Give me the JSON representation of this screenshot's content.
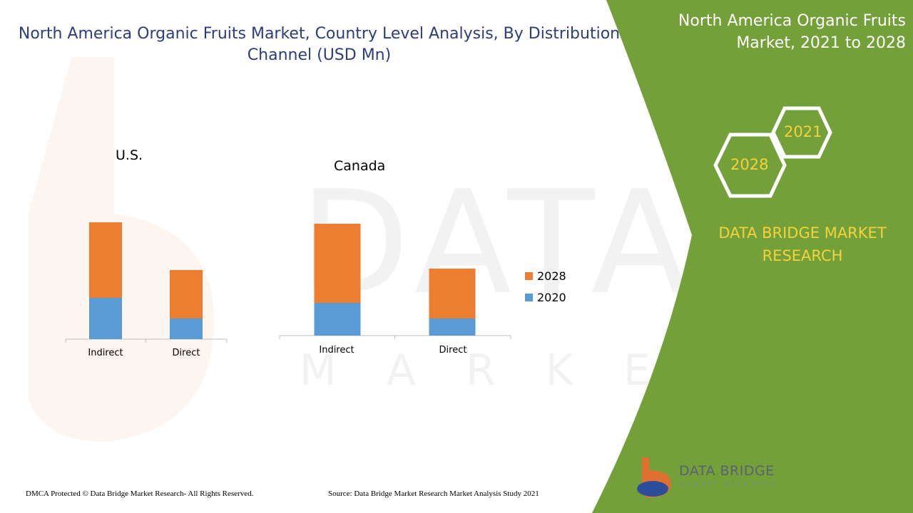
{
  "title": "North America Organic Fruits Market, Country Level Analysis, By Distribution Channel (USD Mn)",
  "side_panel": {
    "title": "North America Organic Fruits Market, 2021 to 2028",
    "hex_year_top": "2021",
    "hex_year_bottom": "2028",
    "brand": "DATA BRIDGE MARKET RESEARCH"
  },
  "logo": {
    "name": "DATA BRIDGE",
    "tagline": "MARKET RESEARCH"
  },
  "watermark": {
    "main": "DATA BRIDGE",
    "sub": "MARKET RESEARCH"
  },
  "footer": {
    "left": "DMCA Protected © Data Bridge Market Research- All Rights Reserved.",
    "right": "Source: Data Bridge Market Research Market Analysis Study 2021"
  },
  "colors": {
    "s2020": "#5b9bd5",
    "s2028": "#ed7d31",
    "panel": "#74a03a",
    "accent": "#f3d23c"
  },
  "chart_data": [
    {
      "type": "bar",
      "stacked": true,
      "title": "U.S.",
      "categories": [
        "Indirect",
        "Direct"
      ],
      "series": [
        {
          "name": "2020",
          "values": [
            58,
            29
          ]
        },
        {
          "name": "2028",
          "values": [
            106,
            68
          ]
        }
      ]
    },
    {
      "type": "bar",
      "stacked": true,
      "title": "Canada",
      "categories": [
        "Indirect",
        "Direct"
      ],
      "series": [
        {
          "name": "2020",
          "values": [
            46,
            24
          ]
        },
        {
          "name": "2028",
          "values": [
            111,
            70
          ]
        }
      ]
    }
  ],
  "legend": [
    "2028",
    "2020"
  ]
}
